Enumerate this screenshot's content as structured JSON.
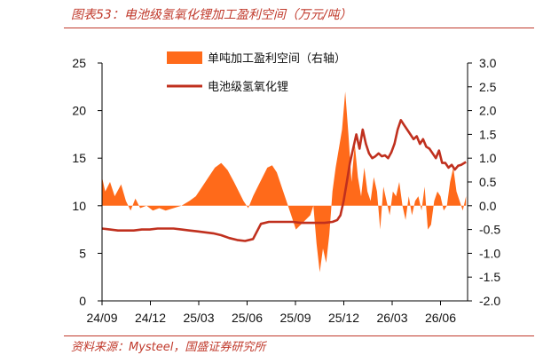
{
  "header": {
    "title": "图表53：电池级氢氧化锂加工盈利空间（万元/吨）"
  },
  "footer": {
    "source": "资料来源：Mysteel，国盛证券研究所"
  },
  "colors": {
    "accent": "#c0392b",
    "area": "#ff6a1a",
    "line": "#c0301e"
  },
  "chart_data": {
    "type": "line",
    "title": "",
    "x_ticks": [
      "24/09",
      "24/12",
      "25/03",
      "25/06",
      "25/09",
      "25/12",
      "26/03",
      "26/06"
    ],
    "x_range": [
      0,
      23
    ],
    "y_left": {
      "range": [
        0,
        25
      ],
      "ticks": [
        "0",
        "5",
        "10",
        "15",
        "20",
        "25"
      ]
    },
    "y_right": {
      "range": [
        -2.0,
        3.0
      ],
      "ticks": [
        "-2.0",
        "-1.5",
        "-1.0",
        "-0.5",
        "0.0",
        "0.5",
        "1.0",
        "1.5",
        "2.0",
        "2.5",
        "3.0"
      ]
    },
    "legend": {
      "placement": "top-center"
    },
    "series": [
      {
        "name": "单吨加工盈利空间（右轴）",
        "type": "area",
        "axis": "right",
        "x": [
          0,
          0.2,
          0.5,
          0.8,
          1.2,
          1.5,
          1.8,
          2.1,
          2.4,
          2.8,
          3.2,
          3.6,
          4.0,
          4.5,
          5.0,
          5.5,
          5.9,
          6.3,
          6.7,
          7.1,
          7.5,
          7.9,
          8.3,
          8.6,
          8.9,
          9.2,
          9.5,
          9.8,
          10.1,
          10.4,
          10.7,
          11.0,
          11.3,
          11.6,
          11.9,
          12.2,
          12.5,
          12.8,
          13.1,
          13.3,
          13.5,
          13.7,
          13.9,
          14.1,
          14.3,
          14.5,
          14.7,
          14.9,
          15.1,
          15.3,
          15.5,
          15.7,
          15.9,
          16.1,
          16.3,
          16.5,
          16.7,
          16.9,
          17.1,
          17.3,
          17.5,
          17.7,
          17.9,
          18.1,
          18.3,
          18.5,
          18.7,
          18.9,
          19.1,
          19.3,
          19.5,
          19.7,
          19.9,
          20.1,
          20.3,
          20.5,
          20.7,
          20.9,
          21.1,
          21.3,
          21.5,
          21.7,
          21.9,
          22.1,
          22.3,
          22.5,
          22.7,
          22.9
        ],
        "values": [
          0.6,
          0.3,
          0.5,
          0.2,
          0.45,
          0.1,
          -0.1,
          0.15,
          -0.05,
          0.0,
          -0.1,
          -0.05,
          -0.1,
          -0.05,
          0.0,
          0.1,
          0.2,
          0.4,
          0.6,
          0.8,
          0.9,
          0.75,
          0.5,
          0.3,
          0.1,
          -0.05,
          0.2,
          0.4,
          0.6,
          0.8,
          0.85,
          0.7,
          0.4,
          0.1,
          -0.2,
          -0.5,
          -0.4,
          -0.3,
          -0.2,
          0.0,
          -0.8,
          -1.4,
          -0.9,
          -1.2,
          -0.6,
          0.3,
          0.8,
          1.2,
          1.6,
          2.4,
          1.5,
          0.5,
          1.3,
          0.6,
          0.2,
          0.8,
          0.3,
          0.1,
          0.6,
          0.3,
          -0.5,
          0.4,
          0.1,
          -0.2,
          0.3,
          0.2,
          0.5,
          0.0,
          -0.3,
          0.2,
          -0.2,
          0.1,
          0.2,
          -0.1,
          0.4,
          -0.5,
          -0.4,
          0.1,
          0.3,
          0.2,
          -0.1,
          0.0,
          0.5,
          0.8,
          0.3,
          0.1,
          -0.1,
          0.2
        ]
      },
      {
        "name": "电池级氢氧化锂",
        "type": "line",
        "axis": "left",
        "x": [
          0,
          0.5,
          1.0,
          1.5,
          2.0,
          2.5,
          3.0,
          3.5,
          4.0,
          4.5,
          5.0,
          5.5,
          6.0,
          6.5,
          7.0,
          7.5,
          8.0,
          8.5,
          9.0,
          9.5,
          10.0,
          10.5,
          11.0,
          11.5,
          12.0,
          12.5,
          13.0,
          13.5,
          14.0,
          14.5,
          14.8,
          15.0,
          15.2,
          15.4,
          15.6,
          15.8,
          16.0,
          16.2,
          16.4,
          16.6,
          16.8,
          17.0,
          17.2,
          17.4,
          17.6,
          17.8,
          18.0,
          18.2,
          18.4,
          18.6,
          18.8,
          19.0,
          19.2,
          19.4,
          19.6,
          19.8,
          20.0,
          20.2,
          20.4,
          20.6,
          20.8,
          21.0,
          21.2,
          21.4,
          21.6,
          21.8,
          22.0,
          22.2,
          22.4,
          22.6,
          22.9
        ],
        "values": [
          7.6,
          7.5,
          7.4,
          7.4,
          7.4,
          7.5,
          7.5,
          7.6,
          7.6,
          7.6,
          7.5,
          7.4,
          7.3,
          7.2,
          7.1,
          6.9,
          6.6,
          6.4,
          6.3,
          6.5,
          8.1,
          8.3,
          8.3,
          8.3,
          8.3,
          8.2,
          8.2,
          8.2,
          8.2,
          8.3,
          8.5,
          9.0,
          10.5,
          12.5,
          14.5,
          16.0,
          17.5,
          16.0,
          18.0,
          16.5,
          15.5,
          15.0,
          15.2,
          15.5,
          15.2,
          15.3,
          15.0,
          15.6,
          16.5,
          18.0,
          19.0,
          18.5,
          18.0,
          17.5,
          17.0,
          17.3,
          16.5,
          17.0,
          16.2,
          16.0,
          15.5,
          15.0,
          15.8,
          14.5,
          14.5,
          14.0,
          14.3,
          13.8,
          14.2,
          14.3,
          14.6
        ]
      }
    ]
  }
}
